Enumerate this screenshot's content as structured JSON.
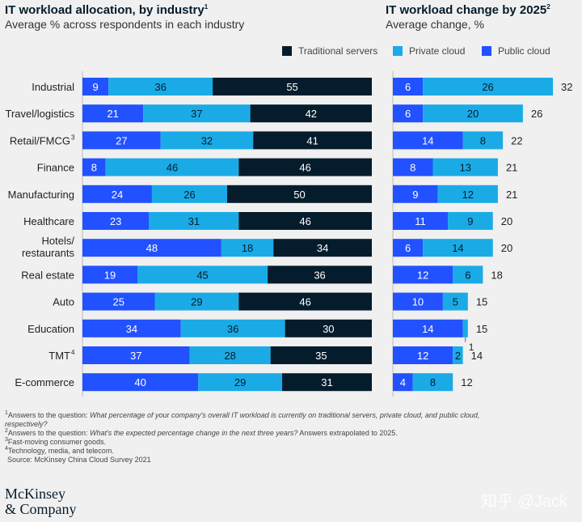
{
  "left_title": "IT workload allocation, by industry",
  "left_title_note": "1",
  "left_subtitle": "Average % across respondents in each industry",
  "right_title": "IT workload change by 2025",
  "right_title_note": "2",
  "right_subtitle": "Average change, %",
  "colors": {
    "traditional": "#051c2c",
    "private": "#1aabe6",
    "public": "#2251ff"
  },
  "chart_data": [
    {
      "type": "bar",
      "stacked": true,
      "orientation": "horizontal",
      "categories": [
        "Industrial",
        "Travel/logistics",
        "Retail/FMCG",
        "Finance",
        "Manufacturing",
        "Healthcare",
        "Hotels/ restaurants",
        "Real estate",
        "Auto",
        "Education",
        "TMT",
        "E-commerce"
      ],
      "category_notes": [
        "",
        "",
        "3",
        "",
        "",
        "",
        "",
        "",
        "",
        "",
        "4",
        ""
      ],
      "series": [
        {
          "name": "Public cloud",
          "values": [
            9,
            21,
            27,
            8,
            24,
            23,
            48,
            19,
            25,
            34,
            37,
            40
          ]
        },
        {
          "name": "Private cloud",
          "values": [
            36,
            37,
            32,
            46,
            26,
            31,
            18,
            45,
            29,
            36,
            28,
            29
          ]
        },
        {
          "name": "Traditional servers",
          "values": [
            55,
            42,
            41,
            46,
            50,
            46,
            34,
            36,
            46,
            30,
            35,
            31
          ]
        }
      ],
      "xlim": [
        0,
        100
      ],
      "legend": {
        "position": "top-right",
        "order": [
          "Traditional servers",
          "Private cloud",
          "Public cloud"
        ]
      }
    },
    {
      "type": "bar",
      "stacked": true,
      "orientation": "horizontal",
      "categories": [
        "Industrial",
        "Travel/logistics",
        "Retail/FMCG",
        "Finance",
        "Manufacturing",
        "Healthcare",
        "Hotels/ restaurants",
        "Real estate",
        "Auto",
        "Education",
        "TMT",
        "E-commerce"
      ],
      "series": [
        {
          "name": "Public cloud",
          "values": [
            6,
            6,
            14,
            8,
            9,
            11,
            6,
            12,
            10,
            14,
            12,
            4
          ]
        },
        {
          "name": "Private cloud",
          "values": [
            26,
            20,
            8,
            13,
            12,
            9,
            14,
            6,
            5,
            1,
            2,
            8
          ]
        }
      ],
      "totals": [
        32,
        26,
        22,
        21,
        21,
        20,
        20,
        18,
        15,
        15,
        14,
        12
      ],
      "xlim": [
        0,
        32
      ]
    }
  ],
  "footnotes": {
    "n1_mark": "1",
    "n1_text": "Answers to the question: ",
    "n1_question": "What percentage of your company's overall IT workload is currently on traditional servers, private cloud, and public cloud, respectively?",
    "n2_mark": "2",
    "n2_text": "Answers to the question: ",
    "n2_question": "What's the expected percentage change in the next three years?",
    "n2_suffix": " Answers extrapolated to 2025.",
    "n3_mark": "3",
    "n3_text": "Fast-moving consumer goods.",
    "n4_mark": "4",
    "n4_text": "Technology, media, and telecom.",
    "source": "Source: McKinsey China Cloud Survey 2021"
  },
  "logo_line1": "McKinsey",
  "logo_line2": "& Company",
  "watermark": "知乎 @Jack"
}
